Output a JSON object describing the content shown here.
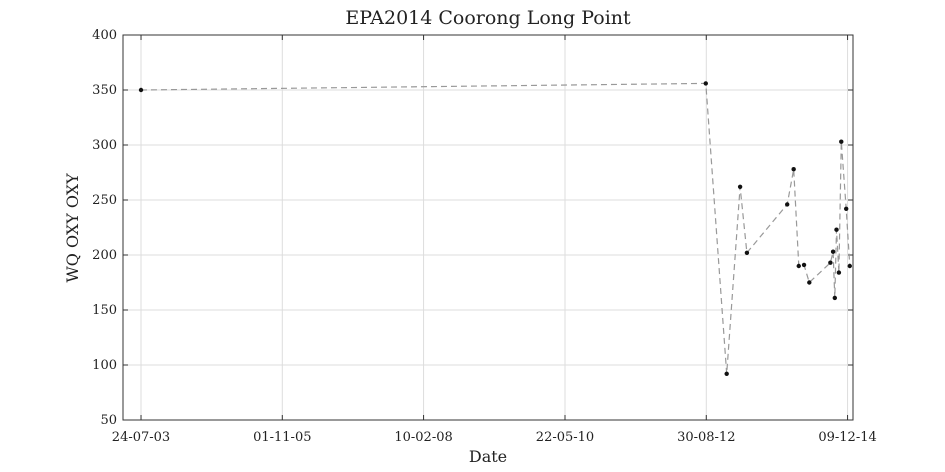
{
  "chart_data": {
    "type": "scatter",
    "title": "EPA2014 Coorong Long Point",
    "xlabel": "Date",
    "ylabel": "WQ OXY OXY",
    "x_tick_labels": [
      "24-07-03",
      "01-11-05",
      "10-02-08",
      "22-05-10",
      "30-08-12",
      "09-12-14"
    ],
    "x_tick_values": [
      "2003-07-24",
      "2005-11-01",
      "2008-02-10",
      "2010-05-22",
      "2012-08-30",
      "2014-12-09"
    ],
    "xlim": [
      "2003-04-09",
      "2015-01-10"
    ],
    "ylim": [
      50,
      400
    ],
    "y_ticks": [
      50,
      100,
      150,
      200,
      250,
      300,
      350,
      400
    ],
    "grid": true,
    "line_style": "dashed",
    "colors": {
      "line": "#999999",
      "marker": "#111111",
      "grid": "#dddddd",
      "axis": "#333333"
    },
    "series": [
      {
        "points": [
          {
            "x": "2003-07-24",
            "y": 350
          },
          {
            "x": "2012-08-27",
            "y": 356
          },
          {
            "x": "2012-12-28",
            "y": 92
          },
          {
            "x": "2013-03-17",
            "y": 262
          },
          {
            "x": "2013-04-26",
            "y": 202
          },
          {
            "x": "2013-12-19",
            "y": 246
          },
          {
            "x": "2014-01-26",
            "y": 278
          },
          {
            "x": "2014-02-25",
            "y": 190
          },
          {
            "x": "2014-03-28",
            "y": 191
          },
          {
            "x": "2014-04-28",
            "y": 175
          },
          {
            "x": "2014-08-30",
            "y": 193
          },
          {
            "x": "2014-09-15",
            "y": 203
          },
          {
            "x": "2014-09-25",
            "y": 161
          },
          {
            "x": "2014-10-05",
            "y": 223
          },
          {
            "x": "2014-10-19",
            "y": 184
          },
          {
            "x": "2014-11-02",
            "y": 303
          },
          {
            "x": "2014-12-01",
            "y": 242
          },
          {
            "x": "2014-12-22",
            "y": 190
          }
        ]
      }
    ]
  }
}
